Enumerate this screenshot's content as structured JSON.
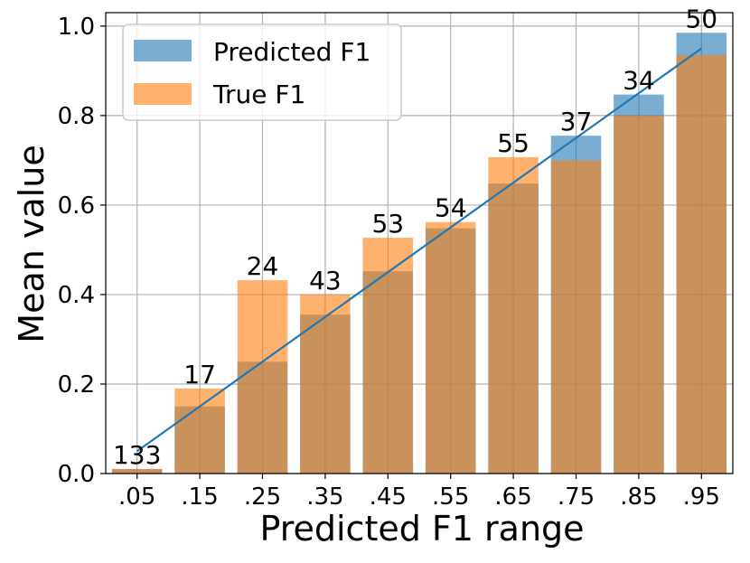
{
  "chart_data": {
    "type": "bar",
    "categories": [
      ".05",
      ".15",
      ".25",
      ".35",
      ".45",
      ".55",
      ".65",
      ".75",
      ".85",
      ".95"
    ],
    "series": [
      {
        "name": "Predicted F1",
        "values": [
          0.01,
          0.15,
          0.25,
          0.355,
          0.452,
          0.548,
          0.648,
          0.755,
          0.847,
          0.985
        ],
        "color": "#1f77b4",
        "opacity": 0.6
      },
      {
        "name": "True F1",
        "values": [
          0.01,
          0.19,
          0.432,
          0.4,
          0.527,
          0.562,
          0.707,
          0.7,
          0.8,
          0.935
        ],
        "color": "#ff7f0e",
        "opacity": 0.6
      }
    ],
    "bar_labels": [
      "133",
      "17",
      "24",
      "43",
      "53",
      "54",
      "55",
      "37",
      "34",
      "50"
    ],
    "reference_line": {
      "x": [
        ".05",
        ".95"
      ],
      "y": [
        0.05,
        0.95
      ],
      "color": "#1f77b4"
    },
    "xlabel": "Predicted F1 range",
    "ylabel": "Mean value",
    "ylim": [
      0.0,
      1.03
    ],
    "yticks": [
      "0.0",
      "0.2",
      "0.4",
      "0.6",
      "0.8",
      "1.0"
    ],
    "grid": true,
    "legend": {
      "position": "top-left",
      "entries": [
        "Predicted F1",
        "True F1"
      ]
    }
  }
}
